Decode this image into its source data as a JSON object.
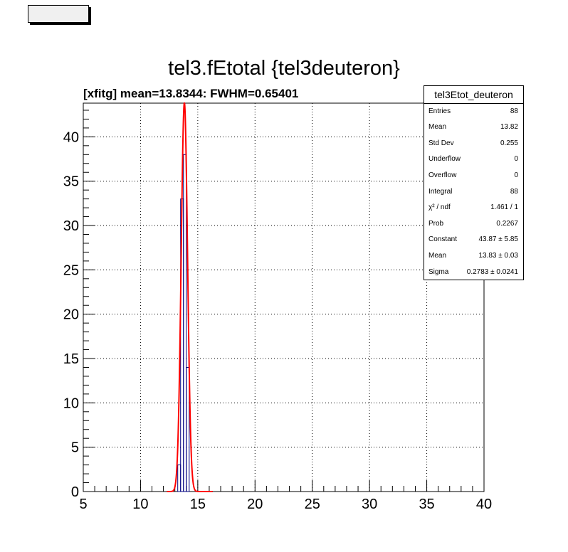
{
  "window": {
    "title": "tel3.fEtotal {tel3deuteron}",
    "fit_label": "[xfitg] mean=13.8344: FWHM=0.65401"
  },
  "stats": {
    "name": "tel3Etot_deuteron",
    "rows": [
      {
        "label": "Entries",
        "value": "88"
      },
      {
        "label": "Mean",
        "value": "13.82"
      },
      {
        "label": "Std Dev",
        "value": "0.255"
      },
      {
        "label": "Underflow",
        "value": "0"
      },
      {
        "label": "Overflow",
        "value": "0"
      },
      {
        "label": "Integral",
        "value": "88"
      },
      {
        "label": "χ² / ndf",
        "value": "1.461 / 1"
      },
      {
        "label": "Prob",
        "value": "0.2267"
      },
      {
        "label": "Constant",
        "value": "43.87 ± 5.85"
      },
      {
        "label": "Mean",
        "value": "13.83 ± 0.03"
      },
      {
        "label": "Sigma",
        "value": "0.2783 ± 0.0241"
      }
    ]
  },
  "chart_data": {
    "type": "bar",
    "title": "tel3.fEtotal {tel3deuteron}",
    "xlim": [
      5,
      40
    ],
    "ylim": [
      0,
      43.8
    ],
    "xticks": [
      5,
      10,
      15,
      20,
      25,
      30,
      35,
      40
    ],
    "yticks": [
      0,
      5,
      10,
      15,
      20,
      25,
      30,
      35,
      40
    ],
    "grid": true,
    "histogram": {
      "color": "#000080",
      "bin_width": 0.25,
      "bins": [
        {
          "x0": 13.0,
          "value": 0
        },
        {
          "x0": 13.25,
          "value": 3
        },
        {
          "x0": 13.5,
          "value": 33
        },
        {
          "x0": 13.75,
          "value": 38
        },
        {
          "x0": 14.0,
          "value": 14
        },
        {
          "x0": 14.25,
          "value": 0
        }
      ]
    },
    "fit": {
      "color": "#ff0000",
      "function": "gaus",
      "constant": 43.87,
      "mean": 13.83,
      "sigma": 0.2783,
      "range": [
        12.3,
        16.3
      ]
    }
  }
}
